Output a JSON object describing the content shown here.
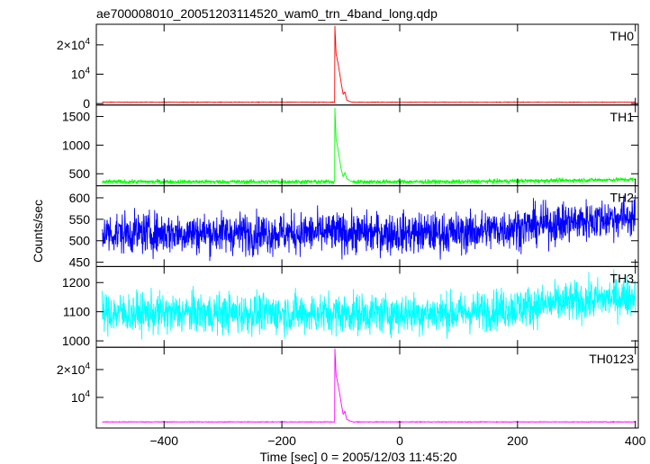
{
  "chart_data": {
    "type": "line",
    "title": "ae700008010_20051203114520_wam0_trn_4band_long.qdp",
    "xlabel": "Time [sec] 0 = 2005/12/03 11:45:20",
    "ylabel": "Counts/sec",
    "xlim": [
      -515,
      405
    ],
    "x_ticks": [
      -400,
      -200,
      0,
      200,
      400
    ],
    "x_tick_labels": [
      "−400",
      "−200",
      "0",
      "200",
      "400"
    ],
    "x_range": [
      -505,
      400
    ],
    "burst_time": -110,
    "panels": [
      {
        "name": "TH0",
        "color": "#ff0000",
        "ylim": [
          -500,
          27000
        ],
        "y_ticks": [
          0,
          10000,
          20000
        ],
        "y_tick_labels": [
          [
            "0"
          ],
          [
            "10",
            "4"
          ],
          [
            "2×10",
            "4"
          ]
        ],
        "baseline": 450,
        "noise": 40,
        "trend": 0,
        "burst": {
          "peak": 26500,
          "decay": [
            {
              "dt": 0,
              "v": 26500
            },
            {
              "dt": 2,
              "v": 17000
            },
            {
              "dt": 5,
              "v": 14000
            },
            {
              "dt": 8,
              "v": 10500
            },
            {
              "dt": 11,
              "v": 6500
            },
            {
              "dt": 14,
              "v": 3200
            },
            {
              "dt": 17,
              "v": 4000
            },
            {
              "dt": 20,
              "v": 1200
            },
            {
              "dt": 25,
              "v": 700
            },
            {
              "dt": 30,
              "v": 450
            }
          ]
        }
      },
      {
        "name": "TH1",
        "color": "#00ff00",
        "ylim": [
          290,
          1700
        ],
        "y_ticks": [
          500,
          1000,
          1500
        ],
        "y_tick_labels": [
          [
            "500"
          ],
          [
            "1000"
          ],
          [
            "1500"
          ]
        ],
        "baseline": 360,
        "noise": 18,
        "trend": 40,
        "burst": {
          "peak": 1650,
          "decay": [
            {
              "dt": 0,
              "v": 1650
            },
            {
              "dt": 2,
              "v": 1100
            },
            {
              "dt": 5,
              "v": 950
            },
            {
              "dt": 8,
              "v": 750
            },
            {
              "dt": 11,
              "v": 560
            },
            {
              "dt": 14,
              "v": 450
            },
            {
              "dt": 17,
              "v": 520
            },
            {
              "dt": 20,
              "v": 420
            },
            {
              "dt": 25,
              "v": 380
            },
            {
              "dt": 30,
              "v": 360
            }
          ]
        }
      },
      {
        "name": "TH2",
        "color": "#0000ff",
        "ylim": [
          440,
          628
        ],
        "y_ticks": [
          450,
          500,
          550,
          600
        ],
        "y_tick_labels": [
          [
            "450"
          ],
          [
            "500"
          ],
          [
            "550"
          ],
          [
            "600"
          ]
        ],
        "baseline": 518,
        "noise": 24,
        "trend": 40,
        "burst": null
      },
      {
        "name": "TH3",
        "color": "#00ffff",
        "ylim": [
          978,
          1255
        ],
        "y_ticks": [
          1000,
          1100,
          1200
        ],
        "y_tick_labels": [
          [
            "1000"
          ],
          [
            "1100"
          ],
          [
            "1200"
          ]
        ],
        "baseline": 1095,
        "noise": 35,
        "trend": 60,
        "burst": null
      },
      {
        "name": "TH0123",
        "color": "#ff00ff",
        "ylim": [
          -1000,
          28000
        ],
        "y_ticks": [
          10000,
          20000
        ],
        "y_tick_labels": [
          [
            "10",
            "4"
          ],
          [
            "2×10",
            "4"
          ]
        ],
        "baseline": 1200,
        "noise": 50,
        "trend": 0,
        "burst": {
          "peak": 27500,
          "decay": [
            {
              "dt": 0,
              "v": 27500
            },
            {
              "dt": 2,
              "v": 18000
            },
            {
              "dt": 5,
              "v": 15000
            },
            {
              "dt": 8,
              "v": 11500
            },
            {
              "dt": 11,
              "v": 7500
            },
            {
              "dt": 14,
              "v": 4000
            },
            {
              "dt": 17,
              "v": 5000
            },
            {
              "dt": 20,
              "v": 2200
            },
            {
              "dt": 25,
              "v": 1600
            },
            {
              "dt": 30,
              "v": 1250
            }
          ]
        }
      }
    ]
  }
}
